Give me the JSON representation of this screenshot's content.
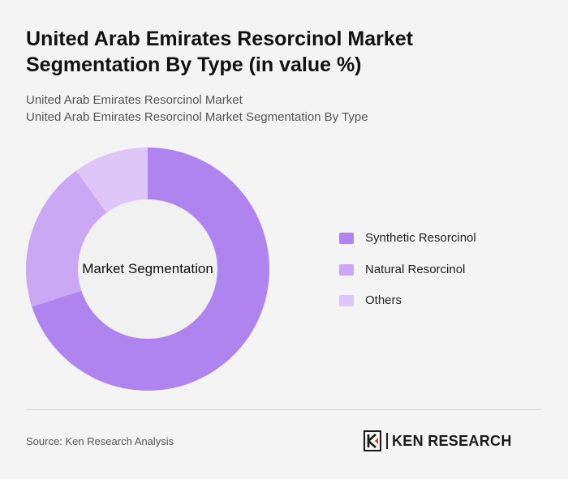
{
  "header": {
    "title": "United Arab Emirates Resorcinol Market Segmentation By Type (in value %)",
    "subtitle_line1": "United Arab Emirates Resorcinol Market",
    "subtitle_line2": "United Arab Emirates Resorcinol Market Segmentation By Type"
  },
  "chart_data": {
    "type": "pie",
    "variant": "donut",
    "center_label": "Market Segmentation",
    "categories": [
      "Synthetic Resorcinol",
      "Natural Resorcinol",
      "Others"
    ],
    "values": [
      70,
      20,
      10
    ],
    "colors": [
      "#b084ee",
      "#cba8f3",
      "#dfc6f8"
    ],
    "legend_position": "right"
  },
  "footer": {
    "source": "Source: Ken Research Analysis",
    "logo_text": "KEN RESEARCH"
  }
}
